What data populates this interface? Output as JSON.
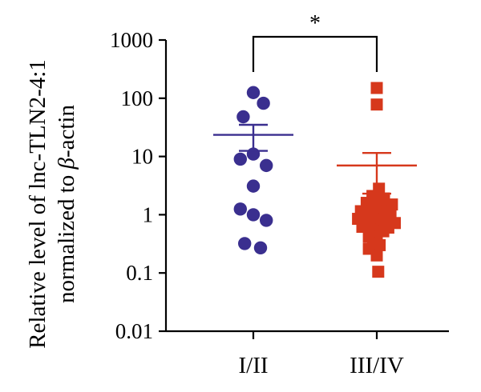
{
  "chart_data": {
    "type": "scatter",
    "ylabel_line1": "Relative level of lnc-TLN2-4:1",
    "ylabel_line2_prefix": "normalized to ",
    "ylabel_line2_beta": "β",
    "ylabel_line2_suffix": "-actin",
    "yscale": "log",
    "ylim": [
      0.01,
      1000
    ],
    "yticks": [
      1000,
      100,
      10,
      1,
      0.1,
      0.01
    ],
    "ytick_labels": [
      "1000",
      "100",
      "10",
      "1",
      "0.1",
      "0.01"
    ],
    "categories": [
      "I/II",
      "III/IV"
    ],
    "significance": "*",
    "series": [
      {
        "category": "I/II",
        "marker": "circle",
        "color": "#3a2f8f",
        "points": [
          {
            "offset": 0,
            "y": 125
          },
          {
            "offset": 0.7,
            "y": 82
          },
          {
            "offset": -0.7,
            "y": 48
          },
          {
            "offset": -0.9,
            "y": 9
          },
          {
            "offset": 0,
            "y": 11
          },
          {
            "offset": 0.9,
            "y": 7
          },
          {
            "offset": 0,
            "y": 3.1
          },
          {
            "offset": -0.9,
            "y": 1.25
          },
          {
            "offset": 0,
            "y": 1.0
          },
          {
            "offset": 0.9,
            "y": 0.8
          },
          {
            "offset": -0.6,
            "y": 0.32
          },
          {
            "offset": 0.5,
            "y": 0.27
          }
        ],
        "mean": 23.5,
        "sem_low": 12.5,
        "sem_high": 35
      },
      {
        "category": "III/IV",
        "marker": "square",
        "color": "#d6381c",
        "points": [
          {
            "offset": 0,
            "y": 150
          },
          {
            "offset": 0,
            "y": 78
          },
          {
            "offset": 0.15,
            "y": 2.8
          },
          {
            "offset": -0.3,
            "y": 2.1
          },
          {
            "offset": 0.5,
            "y": 1.9
          },
          {
            "offset": -0.7,
            "y": 1.6
          },
          {
            "offset": 1.05,
            "y": 1.5
          },
          {
            "offset": -0.1,
            "y": 1.35
          },
          {
            "offset": 0.3,
            "y": 1.3
          },
          {
            "offset": -1.1,
            "y": 1.15
          },
          {
            "offset": 0.7,
            "y": 1.15
          },
          {
            "offset": -0.5,
            "y": 1.05
          },
          {
            "offset": 0.2,
            "y": 1.0
          },
          {
            "offset": 0.95,
            "y": 0.95
          },
          {
            "offset": -0.85,
            "y": 0.9
          },
          {
            "offset": -1.3,
            "y": 0.85
          },
          {
            "offset": 0.55,
            "y": 0.85
          },
          {
            "offset": -0.15,
            "y": 0.8
          },
          {
            "offset": 1.25,
            "y": 0.72
          },
          {
            "offset": -0.6,
            "y": 0.7
          },
          {
            "offset": 0.35,
            "y": 0.7
          },
          {
            "offset": -1.0,
            "y": 0.62
          },
          {
            "offset": 0.8,
            "y": 0.6
          },
          {
            "offset": -0.3,
            "y": 0.55
          },
          {
            "offset": 0.45,
            "y": 0.52
          },
          {
            "offset": 0.0,
            "y": 0.48
          },
          {
            "offset": -0.55,
            "y": 0.42
          },
          {
            "offset": -0.25,
            "y": 0.32
          },
          {
            "offset": 0.2,
            "y": 0.3
          },
          {
            "offset": -0.55,
            "y": 0.26
          },
          {
            "offset": 0.0,
            "y": 0.2
          },
          {
            "offset": 0.1,
            "y": 0.105
          }
        ],
        "mean": 7.0,
        "sem_low": 2.3,
        "sem_high": 11.5
      }
    ]
  }
}
